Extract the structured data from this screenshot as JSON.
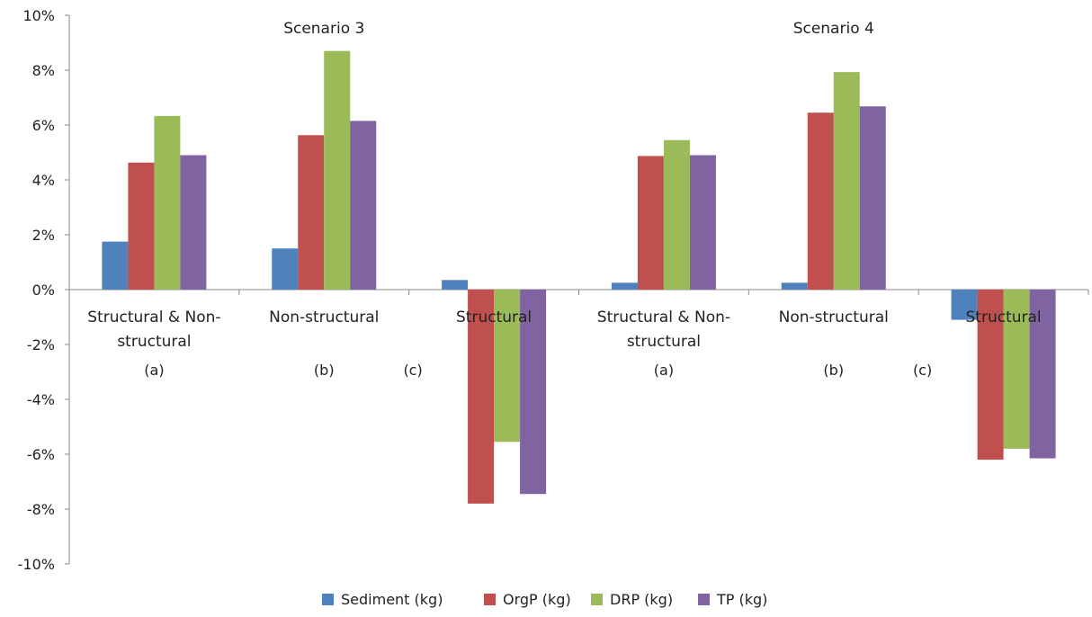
{
  "chart_data": {
    "type": "bar",
    "ylim": [
      -0.1,
      0.1
    ],
    "yticks": [
      0.1,
      0.08,
      0.06,
      0.04,
      0.02,
      0.0,
      -0.02,
      -0.04,
      -0.06,
      -0.08,
      -0.1
    ],
    "ytick_labels": [
      "10%",
      "8%",
      "6%",
      "4%",
      "2%",
      "0%",
      "-2%",
      "-4%",
      "-6%",
      "-8%",
      "-10%"
    ],
    "grid": false,
    "legend_position": "bottom",
    "groups": [
      {
        "label": "Scenario 3",
        "categories": [
          0,
          1,
          2
        ]
      },
      {
        "label": "Scenario 4",
        "categories": [
          3,
          4,
          5
        ]
      }
    ],
    "categories": [
      {
        "lines": [
          "Structural & Non-",
          "structural"
        ],
        "sub": "(a)"
      },
      {
        "lines": [
          "Non-structural"
        ],
        "sub": "(b)"
      },
      {
        "lines": [
          "Structural"
        ],
        "sub": "(c)"
      },
      {
        "lines": [
          "Structural & Non-",
          "structural"
        ],
        "sub": "(a)"
      },
      {
        "lines": [
          "Non-structural"
        ],
        "sub": "(b)"
      },
      {
        "lines": [
          "Structural"
        ],
        "sub": "(c)"
      }
    ],
    "series": [
      {
        "name": "Sediment (kg)",
        "color": "#4f81bd",
        "values": [
          0.0175,
          0.015,
          0.0035,
          0.0025,
          0.0025,
          -0.011
        ]
      },
      {
        "name": "OrgP (kg)",
        "color": "#c0504d",
        "values": [
          0.0463,
          0.0563,
          -0.078,
          0.0487,
          0.0645,
          -0.062
        ]
      },
      {
        "name": "DRP (kg)",
        "color": "#9bbb59",
        "values": [
          0.0633,
          0.087,
          -0.0555,
          0.0545,
          0.0793,
          -0.058
        ]
      },
      {
        "name": "TP (kg)",
        "color": "#8064a2",
        "values": [
          0.049,
          0.0615,
          -0.0745,
          0.049,
          0.0668,
          -0.0615
        ]
      }
    ]
  }
}
